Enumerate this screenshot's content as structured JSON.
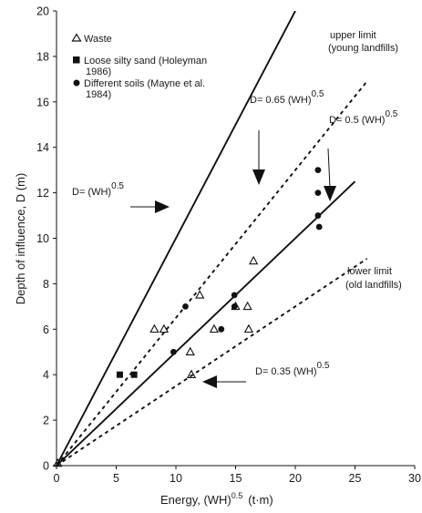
{
  "chart_data": {
    "type": "scatter",
    "xlabel": "Energy, (WH)",
    "xlabel_sup": "0.5",
    "xlabel_unit": "(t·m)",
    "ylabel": "Depth of influence, D  (m)",
    "xlim": [
      0,
      30
    ],
    "ylim": [
      0,
      20
    ],
    "xticks": [
      0,
      5,
      10,
      15,
      20,
      25,
      30
    ],
    "yticks": [
      0,
      2,
      4,
      6,
      8,
      10,
      12,
      14,
      16,
      18,
      20
    ],
    "grid": false,
    "legend_position": "top-left",
    "series": [
      {
        "name": "Waste",
        "marker": "triangle-open",
        "points": [
          [
            0.1,
            0.1
          ],
          [
            8.2,
            6.0
          ],
          [
            9.0,
            6.0
          ],
          [
            11.2,
            5.0
          ],
          [
            11.3,
            4.0
          ],
          [
            12.0,
            7.5
          ],
          [
            13.2,
            6.0
          ],
          [
            15.0,
            7.0
          ],
          [
            16.0,
            7.0
          ],
          [
            16.1,
            6.0
          ],
          [
            16.5,
            9.0
          ]
        ]
      },
      {
        "name": "Loose silty sand (Holeyman",
        "name_line2": "1986)",
        "marker": "square-filled",
        "points": [
          [
            5.3,
            4.0
          ],
          [
            6.5,
            4.0
          ]
        ]
      },
      {
        "name": "Different soils (Mayne  et al.",
        "name_line2": "1984)",
        "marker": "circle-filled",
        "points": [
          [
            9.8,
            5.0
          ],
          [
            10.8,
            7.0
          ],
          [
            13.8,
            6.0
          ],
          [
            14.9,
            7.5
          ],
          [
            14.9,
            7.0
          ],
          [
            21.9,
            13.0
          ],
          [
            21.9,
            12.0
          ],
          [
            21.9,
            11.0
          ],
          [
            22.0,
            10.5
          ]
        ]
      }
    ],
    "lines": [
      {
        "coef": 1.0,
        "style": "solid",
        "x_end": 20,
        "label": "D= (WH)",
        "label_sup": "0.5"
      },
      {
        "coef": 0.65,
        "style": "dashed",
        "x_end": 26,
        "label": "D= 0.65 (WH)",
        "label_sup": "0.5"
      },
      {
        "coef": 0.5,
        "style": "solid",
        "x_end": 25,
        "label": "D= 0.5 (WH)",
        "label_sup": "0.5"
      },
      {
        "coef": 0.35,
        "style": "dashed",
        "x_end": 26,
        "label": "D= 0.35 (WH)",
        "label_sup": "0.5"
      }
    ],
    "annotations": [
      {
        "text": "upper limit",
        "text_line2": "(young landfills)"
      },
      {
        "text": "lower limit",
        "text_line2": "(old landfills)"
      }
    ]
  }
}
